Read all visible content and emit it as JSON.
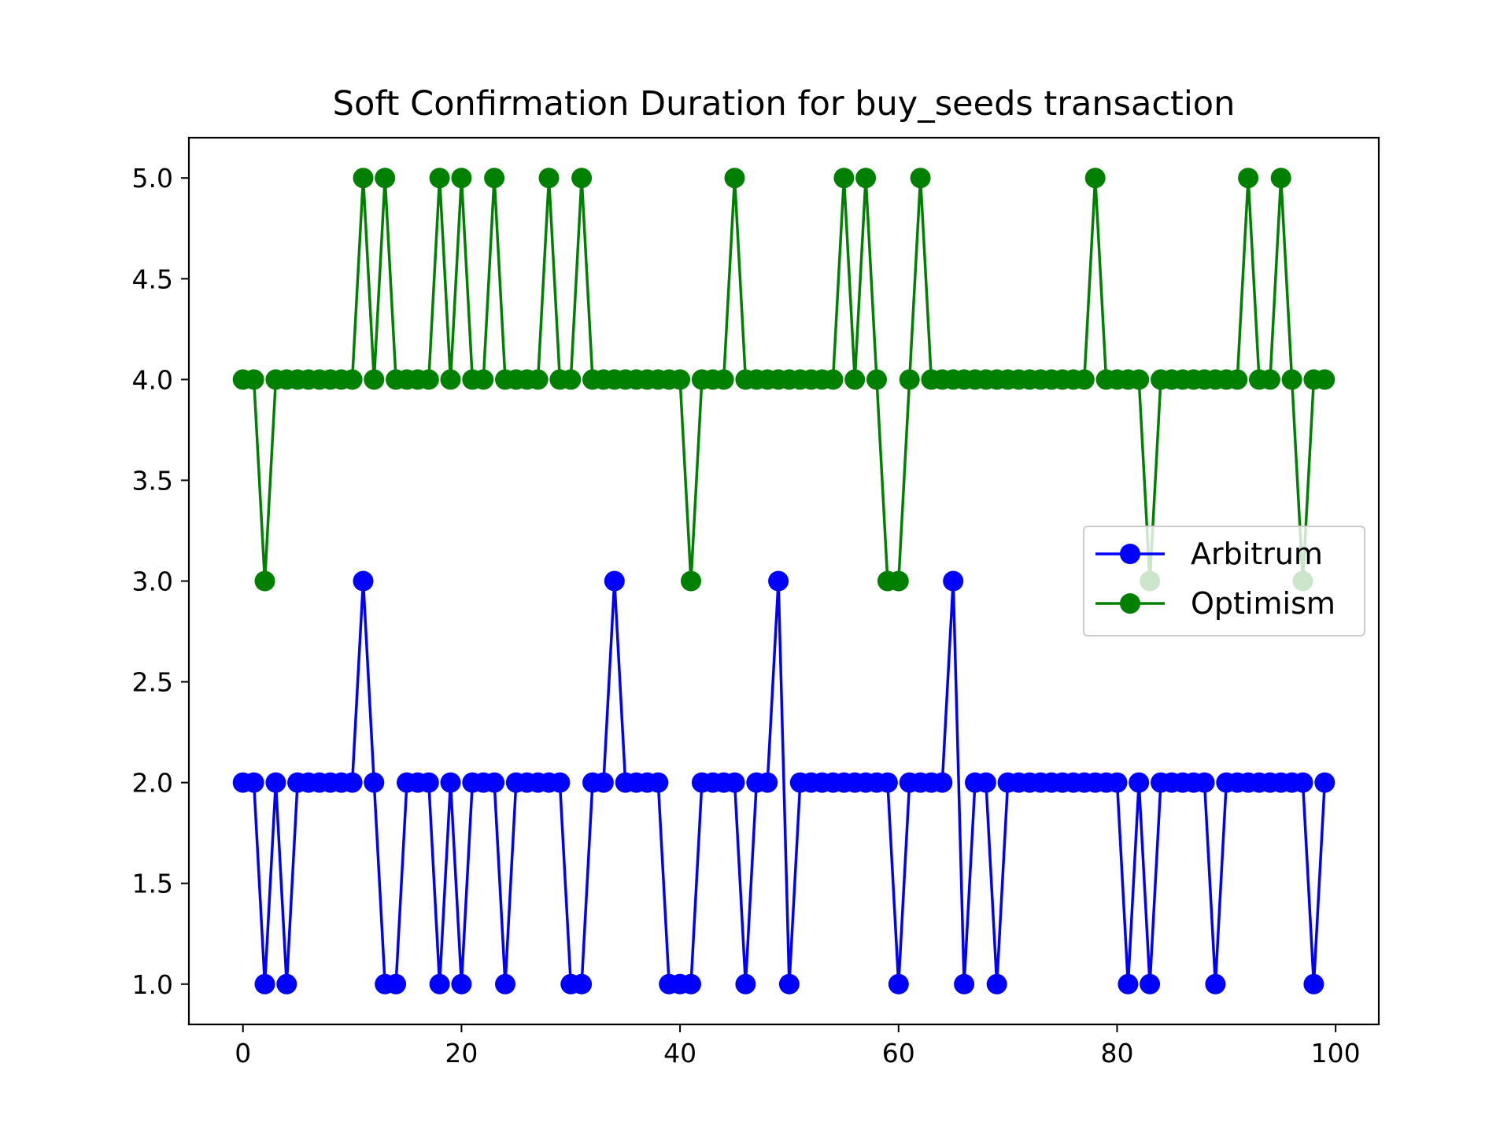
{
  "chart_data": {
    "type": "line",
    "title": "Soft Confirmation Duration for buy_seeds transaction",
    "xlabel": "",
    "ylabel": "",
    "xlim": [
      -4.95,
      103.95
    ],
    "ylim": [
      0.8,
      5.2
    ],
    "x_ticks": [
      0,
      20,
      40,
      60,
      80,
      100
    ],
    "y_ticks": [
      1.0,
      1.5,
      2.0,
      2.5,
      3.0,
      3.5,
      4.0,
      4.5,
      5.0
    ],
    "x_tick_labels": [
      "0",
      "20",
      "40",
      "60",
      "80",
      "100"
    ],
    "y_tick_labels": [
      "1.0",
      "1.5",
      "2.0",
      "2.5",
      "3.0",
      "3.5",
      "4.0",
      "4.5",
      "5.0"
    ],
    "grid": false,
    "legend_position": "center-right",
    "x": [
      0,
      1,
      2,
      3,
      4,
      5,
      6,
      7,
      8,
      9,
      10,
      11,
      12,
      13,
      14,
      15,
      16,
      17,
      18,
      19,
      20,
      21,
      22,
      23,
      24,
      25,
      26,
      27,
      28,
      29,
      30,
      31,
      32,
      33,
      34,
      35,
      36,
      37,
      38,
      39,
      40,
      41,
      42,
      43,
      44,
      45,
      46,
      47,
      48,
      49,
      50,
      51,
      52,
      53,
      54,
      55,
      56,
      57,
      58,
      59,
      60,
      61,
      62,
      63,
      64,
      65,
      66,
      67,
      68,
      69,
      70,
      71,
      72,
      73,
      74,
      75,
      76,
      77,
      78,
      79,
      80,
      81,
      82,
      83,
      84,
      85,
      86,
      87,
      88,
      89,
      90,
      91,
      92,
      93,
      94,
      95,
      96,
      97,
      98,
      99
    ],
    "series": [
      {
        "name": "Arbitrum",
        "color": "#0000ff",
        "values": [
          2,
          2,
          1,
          2,
          1,
          2,
          2,
          2,
          2,
          2,
          2,
          3,
          2,
          1,
          1,
          2,
          2,
          2,
          1,
          2,
          1,
          2,
          2,
          2,
          1,
          2,
          2,
          2,
          2,
          2,
          1,
          1,
          2,
          2,
          3,
          2,
          2,
          2,
          2,
          1,
          1,
          1,
          2,
          2,
          2,
          2,
          1,
          2,
          2,
          3,
          1,
          2,
          2,
          2,
          2,
          2,
          2,
          2,
          2,
          2,
          1,
          2,
          2,
          2,
          2,
          3,
          1,
          2,
          2,
          1,
          2,
          2,
          2,
          2,
          2,
          2,
          2,
          2,
          2,
          2,
          2,
          1,
          2,
          1,
          2,
          2,
          2,
          2,
          2,
          1,
          2,
          2,
          2,
          2,
          2,
          2,
          2,
          2,
          1,
          2
        ]
      },
      {
        "name": "Optimism",
        "color": "#008000",
        "values": [
          4,
          4,
          3,
          4,
          4,
          4,
          4,
          4,
          4,
          4,
          4,
          5,
          4,
          5,
          4,
          4,
          4,
          4,
          5,
          4,
          5,
          4,
          4,
          5,
          4,
          4,
          4,
          4,
          5,
          4,
          4,
          5,
          4,
          4,
          4,
          4,
          4,
          4,
          4,
          4,
          4,
          3,
          4,
          4,
          4,
          5,
          4,
          4,
          4,
          4,
          4,
          4,
          4,
          4,
          4,
          5,
          4,
          5,
          4,
          3,
          3,
          4,
          5,
          4,
          4,
          4,
          4,
          4,
          4,
          4,
          4,
          4,
          4,
          4,
          4,
          4,
          4,
          4,
          5,
          4,
          4,
          4,
          4,
          3,
          4,
          4,
          4,
          4,
          4,
          4,
          4,
          4,
          5,
          4,
          4,
          5,
          4,
          3,
          4,
          4
        ]
      }
    ]
  }
}
